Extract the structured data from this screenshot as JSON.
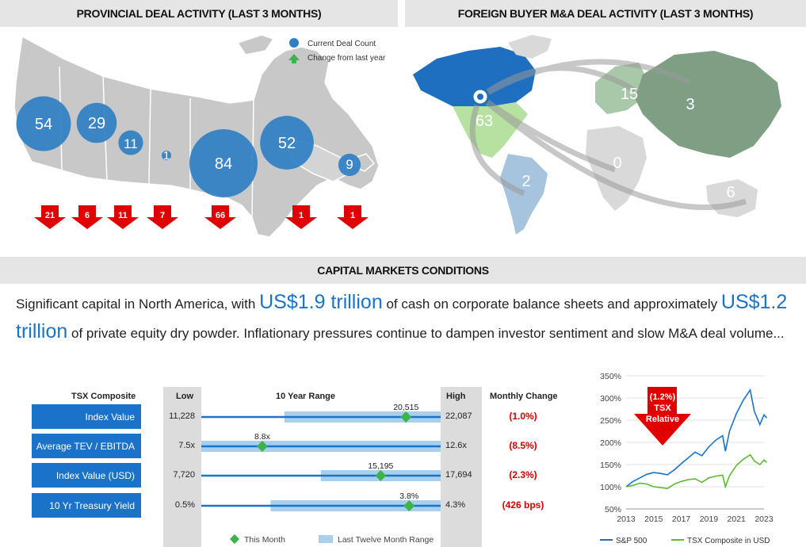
{
  "headers": {
    "provincial": "PROVINCIAL DEAL ACTIVITY (LAST 3 MONTHS)",
    "foreign": "FOREIGN BUYER M&A DEAL ACTIVITY (LAST 3 MONTHS)",
    "capital": "CAPITAL MARKETS CONDITIONS"
  },
  "map_legend": {
    "current": "Current Deal Count",
    "change": "Change from last year"
  },
  "chart_data": [
    {
      "type": "bubble-map",
      "title": "PROVINCIAL DEAL ACTIVITY (LAST 3 MONTHS)",
      "series": [
        {
          "name": "Current Deal Count",
          "values": [
            54,
            29,
            11,
            1,
            84,
            52,
            9
          ]
        },
        {
          "name": "Change from last year",
          "values": [
            -21,
            -6,
            -11,
            -7,
            -66,
            -1,
            -1
          ]
        }
      ],
      "labels": [
        "54",
        "29",
        "11",
        "1",
        "84",
        "52",
        "9"
      ],
      "change_labels": [
        "21",
        "6",
        "11",
        "7",
        "66",
        "1",
        "1"
      ],
      "colors": {
        "bubble": "#2f7fc4",
        "arrow": "#e00000",
        "legend_up": "#3cb44b"
      }
    },
    {
      "type": "world-map",
      "title": "FOREIGN BUYER M&A DEAL ACTIVITY (LAST 3 MONTHS)",
      "values": [
        63,
        15,
        3,
        0,
        2,
        6
      ],
      "labels": [
        "63",
        "15",
        "3",
        "0",
        "2",
        "6"
      ]
    },
    {
      "type": "table",
      "title": "TSX Composite",
      "columns": [
        "TSX Composite",
        "Low",
        "10 Year Range",
        "High",
        "Monthly Change"
      ],
      "rows": [
        {
          "label": "Index Value",
          "low": 11228,
          "low_text": "11,228",
          "high": 22087,
          "high_text": "22,087",
          "current": 20515,
          "current_text": "20,515",
          "ltm_low": 15000,
          "ltm_high": 22087,
          "change": "(1.0%)"
        },
        {
          "label": "Average TEV / EBITDA",
          "low": 7.5,
          "low_text": "7.5x",
          "high": 12.6,
          "high_text": "12.6x",
          "current": 8.8,
          "current_text": "8.8x",
          "ltm_low": 7.5,
          "ltm_high": 12.6,
          "change": "(8.5%)"
        },
        {
          "label": "Index Value (USD)",
          "low": 7720,
          "low_text": "7,720",
          "high": 17694,
          "high_text": "17,694",
          "current": 15195,
          "current_text": "15,195",
          "ltm_low": 12700,
          "ltm_high": 17694,
          "change": "(2.3%)"
        },
        {
          "label": "10 Yr Treasury Yield",
          "low": 0.5,
          "low_text": "0.5%",
          "high": 4.3,
          "high_text": "4.3%",
          "current": 3.8,
          "current_text": "3.8%",
          "ltm_low": 1.6,
          "ltm_high": 4.3,
          "change": "(426 bps)"
        }
      ],
      "legend": [
        "This Month",
        "Last Twelve Month Range"
      ],
      "colors": {
        "marker": "#3cb44b",
        "range": "#a9cfee",
        "line": "#1a73c9",
        "change": "#d40000"
      }
    },
    {
      "type": "line",
      "x": [
        2013,
        2014,
        2015,
        2016,
        2017,
        2018,
        2019,
        2020,
        2021,
        2022,
        2023
      ],
      "xticks": [
        2013,
        2015,
        2017,
        2019,
        2021,
        2023
      ],
      "yticks": [
        50,
        100,
        150,
        200,
        250,
        300,
        350
      ],
      "ylim": [
        50,
        350
      ],
      "xlim": [
        2013,
        2023
      ],
      "series": [
        {
          "name": "S&P 500",
          "color": "#1a73c9",
          "x": [
            2013,
            2013.5,
            2014,
            2014.5,
            2015,
            2015.5,
            2016,
            2016.5,
            2017,
            2017.5,
            2018,
            2018.5,
            2019,
            2019.5,
            2020,
            2020.2,
            2020.5,
            2021,
            2021.5,
            2022,
            2022.3,
            2022.7,
            2023,
            2023.2
          ],
          "y": [
            100,
            112,
            120,
            128,
            132,
            130,
            127,
            138,
            152,
            165,
            178,
            170,
            190,
            205,
            215,
            180,
            225,
            265,
            295,
            318,
            270,
            240,
            262,
            255
          ]
        },
        {
          "name": "TSX Composite in USD",
          "color": "#5dbb2f",
          "x": [
            2013,
            2013.5,
            2014,
            2014.5,
            2015,
            2015.5,
            2016,
            2016.5,
            2017,
            2017.5,
            2018,
            2018.5,
            2019,
            2019.5,
            2020,
            2020.2,
            2020.5,
            2021,
            2021.5,
            2022,
            2022.3,
            2022.7,
            2023,
            2023.2
          ],
          "y": [
            100,
            103,
            108,
            106,
            100,
            98,
            96,
            106,
            112,
            116,
            118,
            110,
            120,
            124,
            126,
            100,
            125,
            148,
            162,
            172,
            158,
            150,
            160,
            155
          ]
        }
      ],
      "yformat": "%",
      "annotation": "(1.2%) TSX Relative"
    }
  ],
  "capital_text": {
    "p1": "Significant capital in North America, with ",
    "big1": "US$1.9 trillion",
    "p2": " of cash on corporate balance sheets and approximately ",
    "big2": "US$1.2 trillion",
    "p3": " of private equity dry powder. Inflationary pressures continue to dampen investor sentiment and slow M&A deal volume..."
  },
  "table_headers": {
    "label": "TSX Composite",
    "low": "Low",
    "range": "10 Year Range",
    "high": "High",
    "change": "Monthly Change"
  },
  "line_annotation": {
    "line1": "(1.2%)",
    "line2": "TSX",
    "line3": "Relative"
  }
}
